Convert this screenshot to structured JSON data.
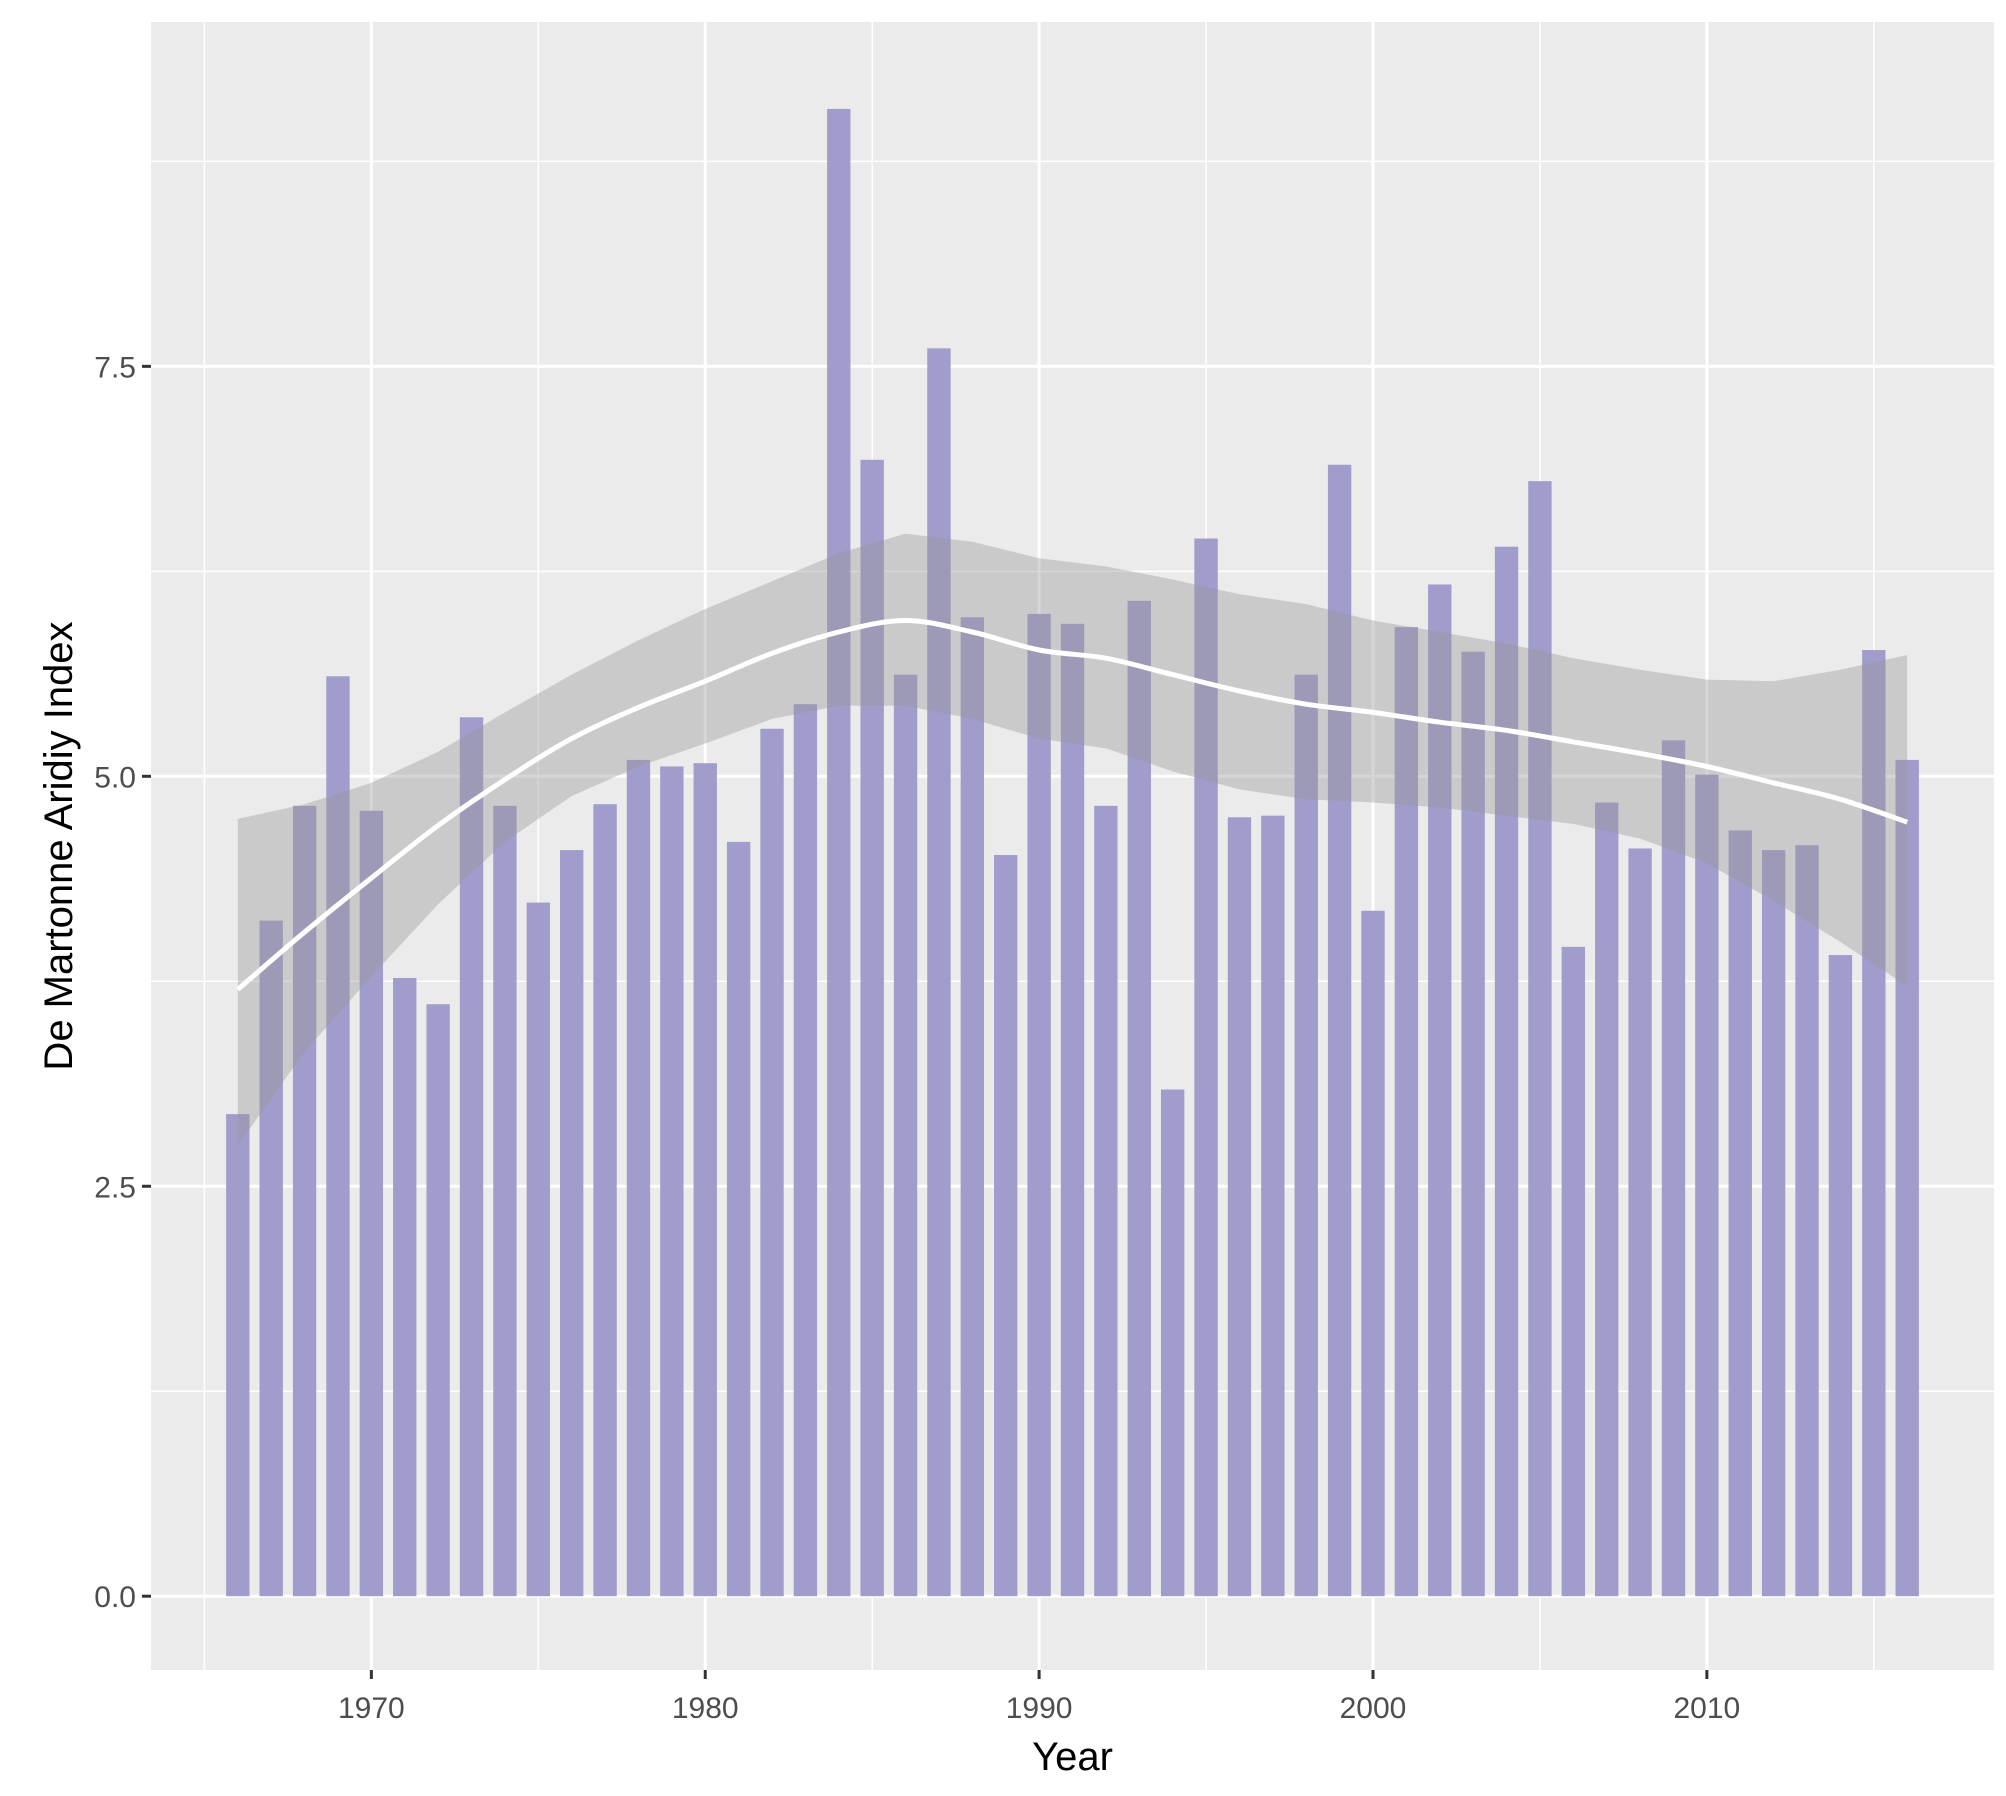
{
  "chart_data": {
    "type": "bar",
    "xlabel": "Year",
    "ylabel": "De Martonne Aridiy Index",
    "xlim": [
      1963.4,
      2018.6
    ],
    "ylim": [
      -0.45,
      9.6
    ],
    "x_ticks": [
      1970,
      1980,
      1990,
      2000,
      2010
    ],
    "x_tick_labels": [
      "1970",
      "1980",
      "1990",
      "2000",
      "2010"
    ],
    "y_ticks": [
      0.0,
      2.5,
      5.0,
      7.5
    ],
    "y_tick_labels": [
      "0.0",
      "2.5",
      "5.0",
      "7.5"
    ],
    "grid": true,
    "x": [
      1966,
      1967,
      1968,
      1969,
      1970,
      1971,
      1972,
      1973,
      1974,
      1975,
      1976,
      1977,
      1978,
      1979,
      1980,
      1981,
      1982,
      1983,
      1984,
      1985,
      1986,
      1987,
      1988,
      1989,
      1990,
      1991,
      1992,
      1993,
      1994,
      1995,
      1996,
      1997,
      1998,
      1999,
      2000,
      2001,
      2002,
      2003,
      2004,
      2005,
      2006,
      2007,
      2008,
      2009,
      2010,
      2011,
      2012,
      2013,
      2014,
      2015,
      2016
    ],
    "values": [
      2.94,
      4.12,
      4.82,
      5.61,
      4.79,
      3.77,
      3.61,
      5.36,
      4.82,
      4.23,
      4.55,
      4.83,
      5.1,
      5.06,
      5.08,
      4.6,
      5.29,
      5.44,
      9.07,
      6.93,
      5.62,
      7.61,
      5.97,
      4.52,
      5.99,
      5.93,
      4.82,
      6.07,
      3.09,
      6.45,
      4.75,
      4.76,
      5.62,
      6.9,
      4.18,
      5.91,
      6.17,
      5.76,
      6.4,
      6.8,
      3.96,
      4.84,
      4.56,
      5.22,
      5.01,
      4.67,
      4.55,
      4.58,
      3.91,
      5.77,
      5.1
    ],
    "smooth": {
      "x": [
        1966,
        1968,
        1970,
        1972,
        1974,
        1976,
        1978,
        1980,
        1982,
        1984,
        1986,
        1988,
        1990,
        1992,
        1994,
        1996,
        1998,
        2000,
        2002,
        2004,
        2006,
        2008,
        2010,
        2012,
        2014,
        2016
      ],
      "y": [
        3.7,
        4.05,
        4.38,
        4.7,
        4.98,
        5.23,
        5.42,
        5.58,
        5.75,
        5.88,
        5.95,
        5.88,
        5.77,
        5.72,
        5.62,
        5.52,
        5.44,
        5.39,
        5.33,
        5.28,
        5.21,
        5.14,
        5.06,
        4.96,
        4.86,
        4.72
      ],
      "lower": [
        2.75,
        3.32,
        3.78,
        4.22,
        4.6,
        4.88,
        5.06,
        5.2,
        5.35,
        5.43,
        5.43,
        5.35,
        5.23,
        5.17,
        5.03,
        4.92,
        4.86,
        4.84,
        4.81,
        4.76,
        4.71,
        4.62,
        4.47,
        4.24,
        3.99,
        3.72
      ],
      "upper": [
        4.74,
        4.83,
        4.96,
        5.15,
        5.39,
        5.62,
        5.83,
        6.02,
        6.19,
        6.36,
        6.48,
        6.43,
        6.33,
        6.28,
        6.2,
        6.11,
        6.05,
        5.95,
        5.88,
        5.81,
        5.72,
        5.65,
        5.59,
        5.58,
        5.65,
        5.74
      ]
    },
    "colors": {
      "bar": "#a09ccb",
      "panel": "#ebebeb",
      "grid_major": "#ffffff",
      "smooth_line": "#ffffff",
      "ribbon": "#999999"
    }
  }
}
